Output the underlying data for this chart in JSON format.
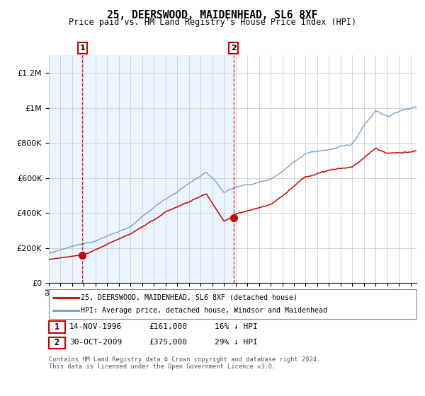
{
  "title": "25, DEERSWOOD, MAIDENHEAD, SL6 8XF",
  "subtitle": "Price paid vs. HM Land Registry's House Price Index (HPI)",
  "legend_label_red": "25, DEERSWOOD, MAIDENHEAD, SL6 8XF (detached house)",
  "legend_label_blue": "HPI: Average price, detached house, Windsor and Maidenhead",
  "annotation1_label": "1",
  "annotation1_date": "14-NOV-1996",
  "annotation1_price": "£161,000",
  "annotation1_hpi": "16% ↓ HPI",
  "annotation2_label": "2",
  "annotation2_date": "30-OCT-2009",
  "annotation2_price": "£375,000",
  "annotation2_hpi": "29% ↓ HPI",
  "footer": "Contains HM Land Registry data © Crown copyright and database right 2024.\nThis data is licensed under the Open Government Licence v3.0.",
  "sale1_year": 1996.87,
  "sale1_value_red": 161000,
  "sale2_year": 2009.83,
  "sale2_value_red": 375000,
  "red_color": "#CC0000",
  "blue_color": "#6699CC",
  "bg_shaded": "#ddeeff",
  "ylim_max": 1300000,
  "ylim_min": 0,
  "xlim_min": 1994,
  "xlim_max": 2025.5
}
